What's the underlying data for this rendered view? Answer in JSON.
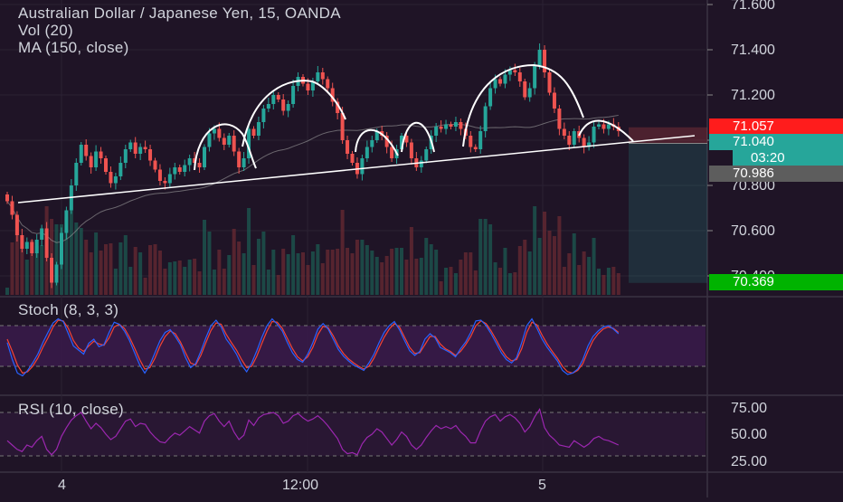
{
  "chart_header": {
    "title": "Australian Dollar / Japanese Yen, 15, OANDA",
    "vol_label": "Vol (20)",
    "ma_label": "MA (150, close)"
  },
  "stoch_panel": {
    "label": "Stoch (8, 3, 3)"
  },
  "rsi_panel": {
    "label": "RSI (10, close)"
  },
  "colors": {
    "background": "#1f1426",
    "up_candle": "#26a69a",
    "down_candle": "#ef5350",
    "stop_zone": "#ef5350",
    "target_zone": "#26a69a",
    "stoch_k": "#2962ff",
    "stoch_d": "#f44336",
    "rsi_line": "#9c27b0",
    "band_fill": "#3b1a4e"
  },
  "price_tags": {
    "stop": "71.057",
    "last": "71.040",
    "countdown": "03:20",
    "entry": "70.986",
    "target": "70.369"
  },
  "chart_data": [
    {
      "type": "candlestick",
      "title": "Australian Dollar / Japanese Yen, 15, OANDA",
      "y_axis_ticks": [
        "71.600",
        "71.400",
        "71.200",
        "70.800",
        "70.600",
        "70.400"
      ],
      "x_axis_ticks": [
        "4",
        "12:00",
        "5"
      ],
      "ylim": [
        70.35,
        71.62
      ],
      "series": [
        {
          "name": "price",
          "close": [
            70.73,
            70.67,
            70.58,
            70.52,
            70.55,
            70.5,
            70.56,
            70.61,
            70.48,
            70.37,
            70.45,
            70.59,
            70.69,
            70.8,
            70.9,
            70.98,
            70.93,
            70.88,
            70.95,
            70.92,
            70.86,
            70.81,
            70.84,
            70.9,
            70.96,
            70.99,
            70.94,
            70.97,
            70.96,
            70.91,
            70.87,
            70.82,
            70.81,
            70.85,
            70.88,
            70.86,
            70.89,
            70.92,
            70.9,
            70.88,
            70.97,
            71.03,
            71.05,
            71.01,
            70.98,
            71.02,
            70.95,
            70.88,
            70.92,
            71.05,
            71.02,
            71.08,
            71.14,
            71.16,
            71.2,
            71.18,
            71.13,
            71.16,
            71.24,
            71.28,
            71.25,
            71.22,
            71.26,
            71.3,
            71.27,
            71.23,
            71.17,
            71.12,
            71.0,
            70.94,
            70.9,
            70.85,
            70.92,
            70.97,
            71.0,
            71.04,
            71.02,
            70.97,
            70.92,
            70.96,
            71.02,
            70.99,
            70.92,
            70.88,
            70.91,
            70.96,
            71.02,
            71.06,
            71.05,
            71.07,
            71.06,
            71.08,
            71.05,
            71.02,
            70.97,
            70.96,
            71.04,
            71.15,
            71.23,
            71.27,
            71.25,
            71.29,
            71.31,
            71.3,
            71.26,
            71.19,
            71.23,
            71.33,
            71.4,
            71.3,
            71.21,
            71.14,
            71.05,
            71.02,
            70.98,
            71.04,
            71.01,
            70.97,
            70.99,
            71.06,
            71.07,
            71.05,
            71.07,
            71.06,
            71.04
          ]
        },
        {
          "name": "MA (150, close)"
        },
        {
          "name": "Vol (20)"
        }
      ]
    },
    {
      "type": "line",
      "title": "Stoch (8, 3, 3)",
      "series": [
        {
          "name": "%K",
          "values": [
            55,
            30,
            10,
            6,
            14,
            25,
            38,
            55,
            70,
            84,
            90,
            86,
            68,
            50,
            44,
            38,
            54,
            60,
            49,
            52,
            70,
            85,
            82,
            72,
            58,
            40,
            22,
            10,
            22,
            40,
            58,
            70,
            74,
            64,
            52,
            33,
            18,
            24,
            42,
            62,
            80,
            88,
            78,
            60,
            50,
            38,
            22,
            12,
            25,
            43,
            63,
            80,
            90,
            82,
            72,
            55,
            40,
            30,
            26,
            38,
            55,
            75,
            83,
            75,
            60,
            45,
            35,
            28,
            22,
            18,
            14,
            25,
            38,
            55,
            70,
            80,
            86,
            74,
            58,
            43,
            36,
            42,
            60,
            68,
            62,
            48,
            44,
            40,
            34,
            46,
            56,
            70,
            87,
            88,
            80,
            68,
            54,
            40,
            30,
            25,
            33,
            55,
            80,
            90,
            76,
            60,
            48,
            38,
            28,
            14,
            8,
            10,
            16,
            30,
            50,
            64,
            72,
            78,
            80,
            75,
            68
          ]
        },
        {
          "name": "%D",
          "values": [
            60,
            42,
            22,
            10,
            12,
            20,
            32,
            48,
            62,
            78,
            88,
            87,
            76,
            58,
            47,
            42,
            50,
            57,
            53,
            51,
            62,
            78,
            82,
            76,
            63,
            47,
            30,
            16,
            18,
            32,
            50,
            64,
            72,
            68,
            56,
            40,
            25,
            22,
            36,
            55,
            73,
            84,
            82,
            67,
            55,
            44,
            30,
            18,
            20,
            35,
            54,
            72,
            86,
            85,
            76,
            61,
            46,
            34,
            28,
            34,
            48,
            67,
            79,
            77,
            65,
            50,
            39,
            31,
            25,
            20,
            16,
            20,
            32,
            48,
            63,
            75,
            83,
            78,
            63,
            48,
            39,
            40,
            52,
            64,
            64,
            53,
            46,
            42,
            36,
            42,
            52,
            64,
            80,
            87,
            83,
            72,
            59,
            45,
            34,
            28,
            30,
            46,
            70,
            85,
            81,
            66,
            53,
            42,
            32,
            20,
            12,
            10,
            14,
            24,
            42,
            58,
            68,
            75,
            78,
            76,
            70
          ]
        }
      ]
    },
    {
      "type": "line",
      "title": "RSI (10, close)",
      "y_axis_ticks": [
        "75.00",
        "50.00",
        "25.00"
      ],
      "series": [
        {
          "name": "RSI",
          "values": [
            44,
            40,
            36,
            34,
            40,
            38,
            44,
            48,
            36,
            31,
            36,
            48,
            56,
            63,
            67,
            70,
            62,
            55,
            60,
            56,
            50,
            45,
            48,
            55,
            62,
            64,
            57,
            60,
            59,
            52,
            47,
            43,
            42,
            47,
            51,
            49,
            53,
            57,
            54,
            51,
            62,
            67,
            69,
            62,
            57,
            62,
            52,
            45,
            49,
            63,
            58,
            65,
            68,
            69,
            70,
            67,
            60,
            62,
            67,
            69,
            65,
            62,
            64,
            67,
            63,
            58,
            52,
            46,
            36,
            32,
            33,
            31,
            41,
            47,
            50,
            55,
            52,
            46,
            40,
            45,
            52,
            48,
            40,
            36,
            40,
            47,
            53,
            58,
            55,
            57,
            55,
            58,
            52,
            48,
            42,
            42,
            53,
            62,
            66,
            68,
            62,
            66,
            68,
            65,
            60,
            52,
            57,
            66,
            73,
            56,
            49,
            45,
            40,
            39,
            38,
            44,
            41,
            38,
            41,
            46,
            48,
            45,
            44,
            42,
            40
          ]
        }
      ]
    }
  ]
}
